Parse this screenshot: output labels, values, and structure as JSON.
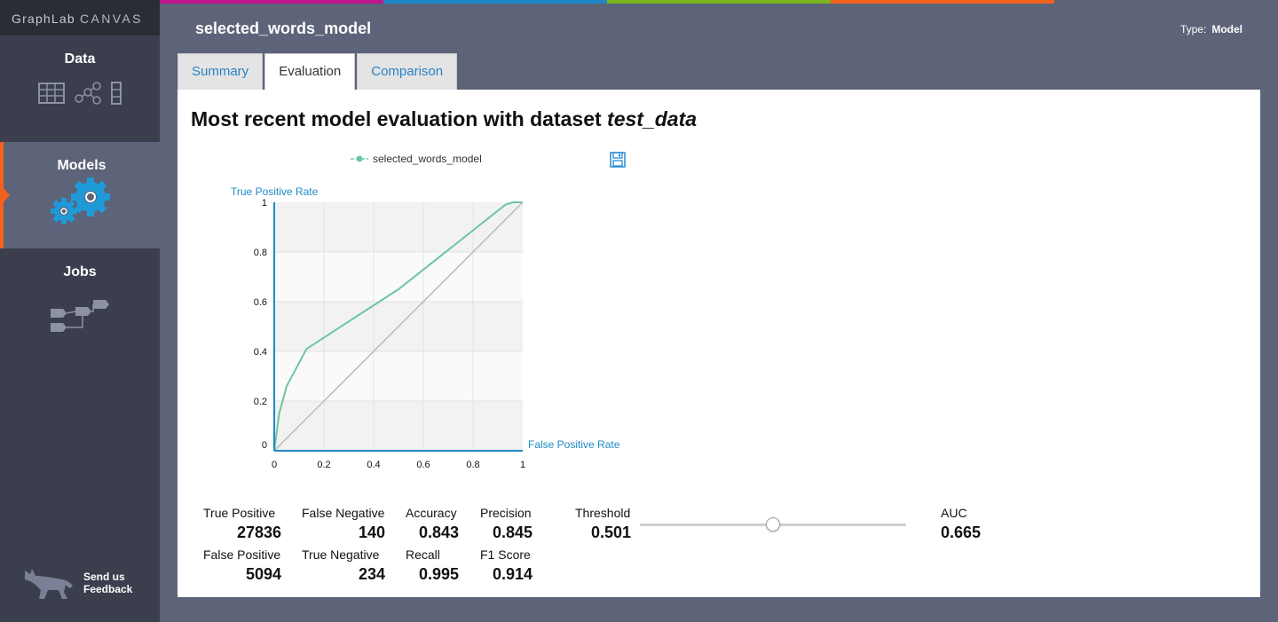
{
  "brand": {
    "part1": "GraphLab",
    "part2": "CANVAS"
  },
  "topbar_colors": [
    "#c0178e",
    "#1e86c6",
    "#7ab51d",
    "#f2611e",
    "#5d6378"
  ],
  "sidebar": {
    "items": [
      {
        "label": "Data",
        "icons": [
          "table-icon",
          "graph-icon",
          "column-icon"
        ]
      },
      {
        "label": "Models",
        "icons": [
          "gears-icon"
        ],
        "active": true
      },
      {
        "label": "Jobs",
        "icons": [
          "pipeline-icon"
        ]
      }
    ],
    "feedback": {
      "line1": "Send us",
      "line2": "Feedback"
    }
  },
  "header": {
    "model_name": "selected_words_model",
    "type_label": "Type:",
    "type_value": "Model"
  },
  "tabs": [
    {
      "label": "Summary"
    },
    {
      "label": "Evaluation",
      "active": true
    },
    {
      "label": "Comparison"
    }
  ],
  "evaluation": {
    "heading_prefix": "Most recent model evaluation with dataset",
    "dataset": "test_data"
  },
  "chart_data": {
    "type": "line",
    "legend": [
      "selected_words_model"
    ],
    "xlabel": "False Positive Rate",
    "ylabel": "True Positive Rate",
    "xlim": [
      0,
      1
    ],
    "ylim": [
      0,
      1
    ],
    "x_ticks": [
      "0",
      "0.2",
      "0.4",
      "0.6",
      "0.8",
      "1"
    ],
    "y_ticks": [
      "0",
      "0.2",
      "0.4",
      "0.6",
      "0.8",
      "1"
    ],
    "series": [
      {
        "name": "selected_words_model",
        "color": "#6cc6a4",
        "x": [
          0,
          0.02,
          0.05,
          0.13,
          0.5,
          0.93,
          0.96,
          1
        ],
        "y": [
          0,
          0.15,
          0.26,
          0.41,
          0.65,
          0.99,
          1.0,
          1.0
        ]
      },
      {
        "name": "",
        "color": "#b9b9b9",
        "x": [
          0,
          1
        ],
        "y": [
          0,
          1
        ]
      }
    ]
  },
  "stats": {
    "true_positive": {
      "label": "True Positive",
      "value": "27836"
    },
    "false_negative": {
      "label": "False Negative",
      "value": "140"
    },
    "accuracy": {
      "label": "Accuracy",
      "value": "0.843"
    },
    "precision": {
      "label": "Precision",
      "value": "0.845"
    },
    "false_positive": {
      "label": "False Positive",
      "value": "5094"
    },
    "true_negative": {
      "label": "True Negative",
      "value": "234"
    },
    "recall": {
      "label": "Recall",
      "value": "0.995"
    },
    "f1_score": {
      "label": "F1 Score",
      "value": "0.914"
    },
    "threshold": {
      "label": "Threshold",
      "value": "0.501"
    },
    "auc": {
      "label": "AUC",
      "value": "0.665"
    }
  },
  "threshold_slider": {
    "level": 0.501
  }
}
